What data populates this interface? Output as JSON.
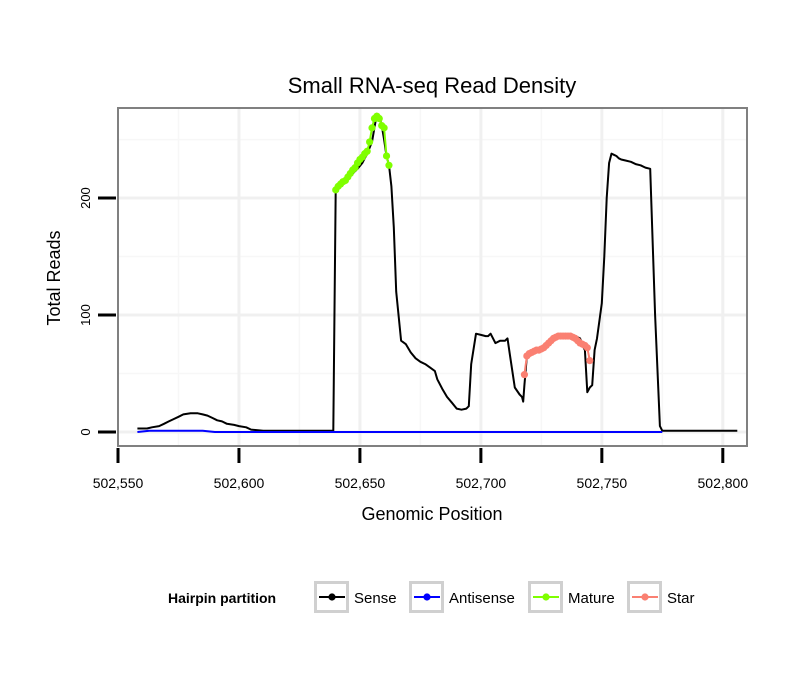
{
  "chart_data": {
    "type": "line",
    "title": "Small RNA-seq Read Density",
    "xlabel": "Genomic Position",
    "ylabel": "Total Reads",
    "xlim": [
      502550,
      502810
    ],
    "ylim": [
      -12,
      277
    ],
    "x_ticks": [
      502550,
      502600,
      502650,
      502700,
      502750,
      502800
    ],
    "x_tick_labels": [
      "502,550",
      "502,600",
      "502,650",
      "502,700",
      "502,750",
      "502,800"
    ],
    "y_ticks": [
      0,
      100,
      200
    ],
    "y_tick_labels": [
      "0",
      "100",
      "200"
    ],
    "grid": true,
    "legend": {
      "title": "Hairpin partition",
      "position": "bottom",
      "entries": [
        {
          "label": "Sense",
          "color": "#000000"
        },
        {
          "label": "Antisense",
          "color": "#0000ff"
        },
        {
          "label": "Mature",
          "color": "#7fff00"
        },
        {
          "label": "Star",
          "color": "#fa8072"
        }
      ]
    },
    "series": [
      {
        "name": "Sense",
        "color": "#000000",
        "x": [
          502558,
          502562,
          502564,
          502567,
          502569,
          502571,
          502573,
          502575,
          502577,
          502580,
          502583,
          502585,
          502587,
          502589,
          502591,
          502593,
          502595,
          502598,
          502600,
          502603,
          502605,
          502610,
          502620,
          502630,
          502639,
          502640,
          502641,
          502643,
          502645,
          502647,
          502649,
          502651,
          502653,
          502655,
          502656,
          502657,
          502658,
          502659,
          502660,
          502661,
          502662,
          502663,
          502664,
          502665,
          502667,
          502669,
          502671,
          502673,
          502675,
          502677,
          502679,
          502681,
          502682,
          502684,
          502686,
          502688,
          502690,
          502692,
          502694,
          502695,
          502696,
          502698,
          502700,
          502702,
          502703,
          502704,
          502706,
          502708,
          502710,
          502711,
          502712,
          502714,
          502716,
          502717,
          502717.5,
          502718,
          502719,
          502721,
          502723,
          502725,
          502727,
          502729,
          502731,
          502733,
          502735,
          502737,
          502739,
          502741,
          502742,
          502743,
          502744,
          502745,
          502746,
          502747,
          502748,
          502750,
          502751,
          502752,
          502753,
          502754,
          502755,
          502756,
          502757,
          502758,
          502760,
          502762,
          502764,
          502766,
          502768,
          502770,
          502772,
          502774,
          502775,
          502776,
          502780,
          502790,
          502800,
          502806
        ],
        "y": [
          3,
          3,
          4,
          5,
          7,
          9,
          11,
          13,
          15,
          16,
          16,
          15,
          14,
          12,
          10,
          9,
          7,
          6,
          5,
          4,
          2,
          1,
          1,
          1,
          1,
          207,
          210,
          213,
          216,
          221,
          225,
          230,
          238,
          248,
          260,
          272,
          270,
          262,
          250,
          236,
          228,
          210,
          175,
          120,
          78,
          75,
          68,
          63,
          60,
          58,
          55,
          52,
          45,
          37,
          30,
          25,
          20,
          19,
          20,
          22,
          58,
          84,
          83,
          82,
          82,
          84,
          76,
          78,
          78,
          80,
          66,
          38,
          32,
          30,
          26,
          40,
          65,
          68,
          70,
          72,
          74,
          78,
          80,
          82,
          82,
          82,
          82,
          80,
          74,
          70,
          34,
          38,
          40,
          70,
          80,
          110,
          150,
          200,
          230,
          238,
          237,
          236,
          234,
          233,
          232,
          231,
          229,
          228,
          226,
          225,
          100,
          5,
          1,
          1,
          1,
          1,
          1,
          1
        ],
        "markers": false
      },
      {
        "name": "Antisense",
        "color": "#0000ff",
        "x": [
          502558,
          502563,
          502575,
          502585,
          502590,
          502600,
          502606,
          502650,
          502700,
          502750,
          502775
        ],
        "y": [
          0,
          1,
          1,
          1,
          0,
          0,
          0,
          0,
          0,
          0,
          0
        ],
        "markers": false
      },
      {
        "name": "Mature",
        "color": "#7fff00",
        "x": [
          502640,
          502641,
          502642,
          502643,
          502644,
          502645,
          502646,
          502647,
          502648,
          502649,
          502650,
          502651,
          502652,
          502653,
          502654,
          502655,
          502656,
          502657,
          502658,
          502659,
          502660,
          502661,
          502662
        ],
        "y": [
          207,
          210,
          212,
          214,
          215,
          218,
          221,
          224,
          226,
          230,
          233,
          235,
          238,
          240,
          248,
          260,
          268,
          270,
          268,
          262,
          260,
          236,
          228
        ],
        "markers": true
      },
      {
        "name": "Star",
        "color": "#fa8072",
        "x": [
          502718,
          502719,
          502720,
          502721,
          502722,
          502723,
          502724,
          502725,
          502726,
          502727,
          502728,
          502729,
          502730,
          502731,
          502732,
          502733,
          502734,
          502735,
          502736,
          502737,
          502738,
          502739,
          502740,
          502741,
          502742,
          502743,
          502744,
          502745
        ],
        "y": [
          49,
          65,
          67,
          68,
          69,
          70,
          70,
          71,
          72,
          74,
          76,
          78,
          80,
          81,
          82,
          82,
          82,
          82,
          82,
          82,
          81,
          80,
          78,
          76,
          75,
          74,
          72,
          61
        ],
        "markers": true
      }
    ]
  }
}
